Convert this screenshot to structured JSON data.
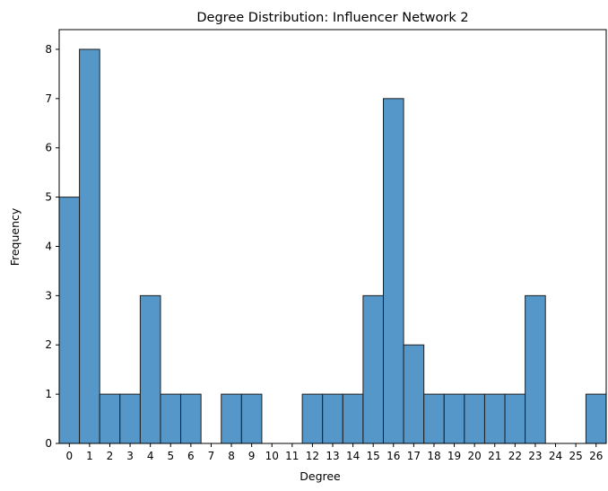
{
  "chart_data": {
    "type": "bar",
    "title": "Degree Distribution: Influencer Network 2",
    "xlabel": "Degree",
    "ylabel": "Frequency",
    "categories": [
      "0",
      "1",
      "2",
      "3",
      "4",
      "5",
      "6",
      "7",
      "8",
      "9",
      "10",
      "11",
      "12",
      "13",
      "14",
      "15",
      "16",
      "17",
      "18",
      "19",
      "20",
      "21",
      "22",
      "23",
      "24",
      "25",
      "26"
    ],
    "values": [
      5,
      8,
      1,
      1,
      3,
      1,
      1,
      0,
      1,
      1,
      0,
      0,
      1,
      1,
      1,
      3,
      7,
      2,
      1,
      1,
      1,
      1,
      1,
      3,
      0,
      0,
      1
    ],
    "xlim": [
      -0.5,
      26.5
    ],
    "ylim": [
      0,
      8.4
    ],
    "yticks": [
      "0",
      "1",
      "2",
      "3",
      "4",
      "5",
      "6",
      "7",
      "8"
    ],
    "bar_color": "#5597c8",
    "edge_color": "#1f1f1f",
    "grid": false,
    "legend": false
  }
}
